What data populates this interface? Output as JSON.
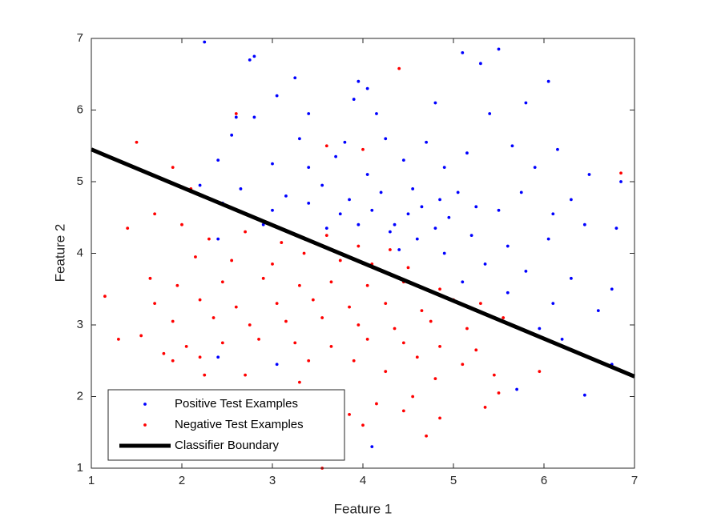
{
  "chart_data": {
    "type": "scatter",
    "xlabel": "Feature 1",
    "ylabel": "Feature 2",
    "xlim": [
      1,
      7
    ],
    "ylim": [
      1,
      7
    ],
    "xticks": [
      1,
      2,
      3,
      4,
      5,
      6,
      7
    ],
    "yticks": [
      1,
      2,
      3,
      4,
      5,
      6,
      7
    ],
    "legend": "lower left",
    "series": [
      {
        "name": "Positive Test Examples",
        "color": "#0000ff",
        "mode": "markers",
        "x": [
          2.25,
          2.8,
          2.75,
          3.25,
          3.9,
          4.05,
          3.95,
          5.1,
          5.5,
          5.3,
          6.05,
          5.8,
          4.8,
          3.05,
          2.6,
          2.8,
          3.4,
          4.15,
          5.4,
          2.55,
          3.3,
          3.8,
          4.25,
          4.7,
          5.15,
          5.65,
          6.15,
          2.4,
          3.0,
          3.4,
          3.7,
          4.05,
          4.45,
          4.9,
          5.9,
          6.5,
          6.85,
          2.2,
          2.65,
          3.15,
          3.55,
          3.85,
          4.2,
          4.55,
          4.85,
          5.25,
          5.75,
          6.3,
          2.45,
          3.0,
          3.4,
          3.75,
          4.1,
          4.5,
          4.95,
          5.5,
          6.1,
          6.8,
          2.4,
          2.9,
          3.6,
          4.3,
          4.6,
          4.8,
          5.2,
          5.6,
          6.05,
          6.45,
          4.4,
          4.9,
          5.35,
          5.8,
          6.3,
          6.75,
          5.1,
          5.6,
          6.1,
          6.6,
          5.95,
          6.2,
          6.75,
          6.45,
          5.7,
          4.1,
          3.05,
          2.4,
          4.35,
          4.65,
          3.95,
          5.05
        ],
        "y": [
          6.95,
          6.75,
          6.7,
          6.45,
          6.15,
          6.3,
          6.4,
          6.8,
          6.85,
          6.65,
          6.4,
          6.1,
          6.1,
          6.2,
          5.9,
          5.9,
          5.95,
          5.95,
          5.95,
          5.65,
          5.6,
          5.55,
          5.6,
          5.55,
          5.4,
          5.5,
          5.45,
          5.3,
          5.25,
          5.2,
          5.35,
          5.1,
          5.3,
          5.2,
          5.2,
          5.1,
          5.0,
          4.95,
          4.9,
          4.8,
          4.95,
          4.75,
          4.85,
          4.9,
          4.75,
          4.65,
          4.85,
          4.75,
          4.7,
          4.6,
          4.7,
          4.55,
          4.6,
          4.55,
          4.5,
          4.6,
          4.55,
          4.35,
          4.2,
          4.4,
          4.35,
          4.3,
          4.2,
          4.35,
          4.25,
          4.1,
          4.2,
          4.4,
          4.05,
          4.0,
          3.85,
          3.75,
          3.65,
          3.5,
          3.6,
          3.45,
          3.3,
          3.2,
          2.95,
          2.8,
          2.45,
          2.02,
          2.1,
          1.3,
          2.45,
          2.55,
          4.4,
          4.65,
          4.4,
          4.85
        ]
      },
      {
        "name": "Negative Test Examples",
        "color": "#ff0000",
        "mode": "markers",
        "x": [
          4.4,
          2.6,
          1.5,
          3.6,
          4.0,
          1.9,
          1.75,
          2.1,
          6.85,
          1.7,
          1.4,
          2.0,
          2.3,
          2.7,
          3.1,
          3.6,
          3.95,
          4.3,
          2.15,
          2.55,
          3.0,
          3.35,
          3.75,
          4.1,
          4.5,
          1.65,
          1.95,
          2.45,
          2.9,
          3.3,
          3.65,
          4.05,
          4.45,
          4.85,
          1.15,
          1.7,
          2.2,
          2.6,
          3.05,
          3.45,
          3.85,
          4.25,
          4.65,
          5.0,
          5.3,
          1.9,
          2.35,
          2.75,
          3.15,
          3.55,
          3.95,
          4.35,
          4.75,
          5.15,
          5.55,
          1.3,
          1.55,
          2.05,
          2.45,
          2.85,
          3.25,
          3.65,
          4.05,
          4.45,
          4.85,
          5.25,
          1.8,
          2.2,
          3.4,
          3.9,
          4.6,
          5.1,
          2.25,
          2.7,
          3.3,
          4.25,
          4.8,
          5.45,
          1.9,
          3.0,
          3.7,
          4.15,
          4.55,
          5.5,
          3.85,
          4.45,
          4.85,
          4.7,
          3.55,
          5.95,
          5.35,
          4.0
        ],
        "y": [
          6.58,
          5.95,
          5.55,
          5.5,
          5.45,
          5.2,
          5.05,
          4.9,
          5.12,
          4.55,
          4.35,
          4.4,
          4.2,
          4.3,
          4.15,
          4.25,
          4.1,
          4.05,
          3.95,
          3.9,
          3.85,
          4.0,
          3.9,
          3.85,
          3.8,
          3.65,
          3.55,
          3.6,
          3.65,
          3.55,
          3.6,
          3.55,
          3.6,
          3.5,
          3.4,
          3.3,
          3.35,
          3.25,
          3.3,
          3.35,
          3.25,
          3.3,
          3.2,
          3.35,
          3.3,
          3.05,
          3.1,
          3.0,
          3.05,
          3.1,
          3.0,
          2.95,
          3.05,
          2.95,
          3.1,
          2.8,
          2.85,
          2.7,
          2.75,
          2.8,
          2.75,
          2.7,
          2.8,
          2.75,
          2.7,
          2.65,
          2.6,
          2.55,
          2.5,
          2.5,
          2.55,
          2.45,
          2.3,
          2.3,
          2.2,
          2.35,
          2.25,
          2.3,
          2.5,
          2.0,
          2.0,
          1.9,
          2.0,
          2.05,
          1.75,
          1.8,
          1.7,
          1.45,
          1.0,
          2.35,
          1.85,
          1.6
        ]
      },
      {
        "name": "Classifier Boundary",
        "color": "#000000",
        "mode": "line",
        "x": [
          1,
          7
        ],
        "y": [
          5.45,
          2.28
        ]
      }
    ]
  }
}
